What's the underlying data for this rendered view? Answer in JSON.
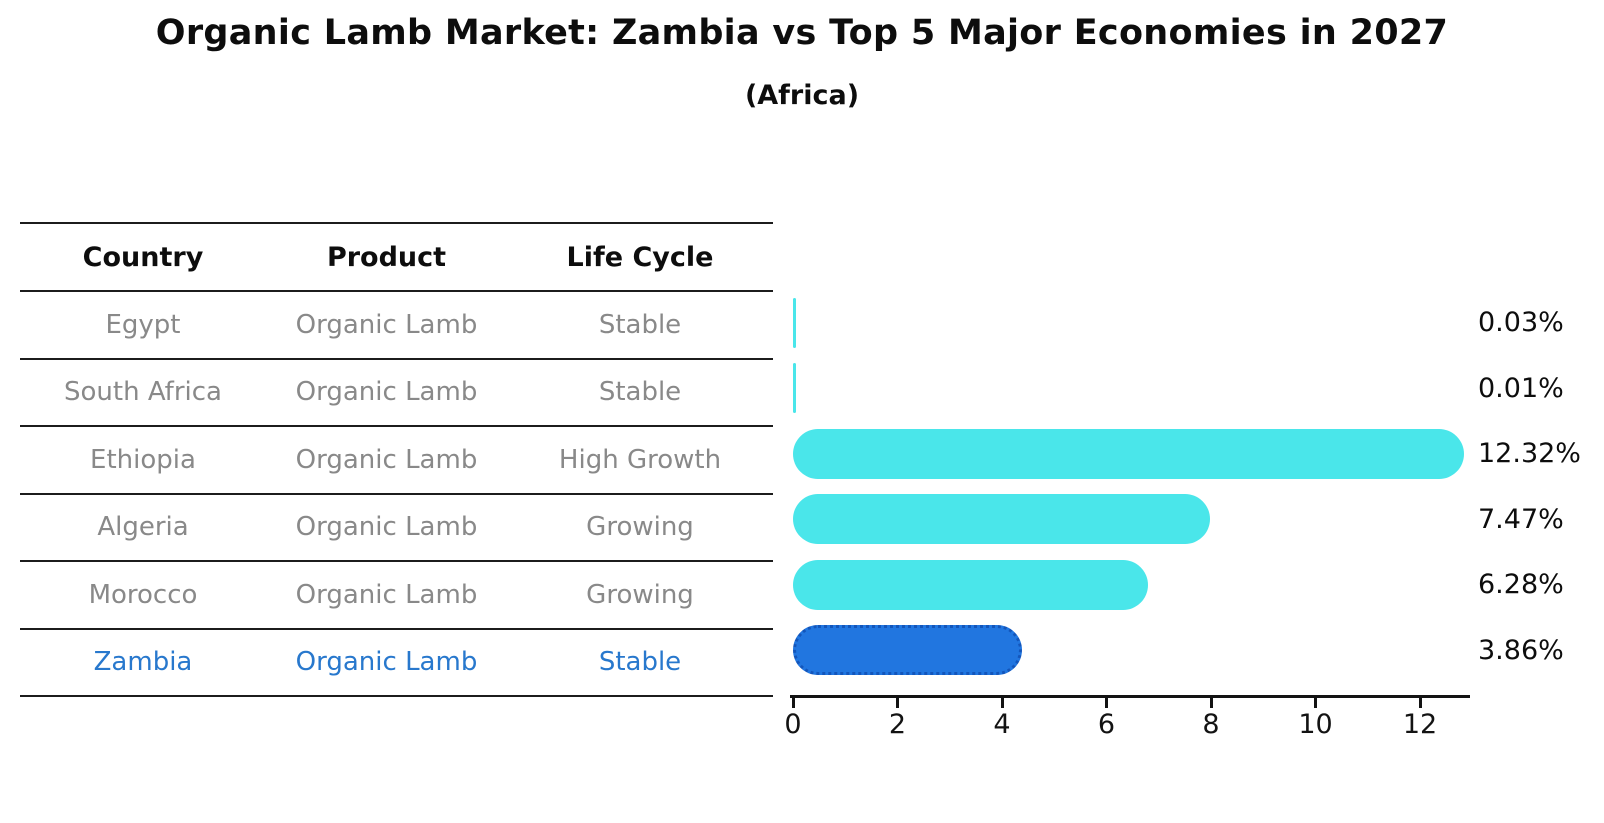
{
  "title": "Organic Lamb Market: Zambia vs Top 5 Major Economies in 2027",
  "subtitle": "(Africa)",
  "table": {
    "headers": [
      "Country",
      "Product",
      "Life Cycle"
    ],
    "rows": [
      {
        "country": "Egypt",
        "product": "Organic Lamb",
        "life_cycle": "Stable",
        "highlight": false
      },
      {
        "country": "South Africa",
        "product": "Organic Lamb",
        "life_cycle": "Stable",
        "highlight": false
      },
      {
        "country": "Ethiopia",
        "product": "Organic Lamb",
        "life_cycle": "High Growth",
        "highlight": false
      },
      {
        "country": "Algeria",
        "product": "Organic Lamb",
        "life_cycle": "Growing",
        "highlight": false
      },
      {
        "country": "Morocco",
        "product": "Organic Lamb",
        "life_cycle": "Growing",
        "highlight": false
      },
      {
        "country": "Zambia",
        "product": "Organic Lamb",
        "life_cycle": "Stable",
        "highlight": true
      }
    ]
  },
  "chart_data": {
    "type": "bar",
    "orientation": "horizontal",
    "title": "Organic Lamb Market: Zambia vs Top 5 Major Economies in 2027",
    "subtitle": "(Africa)",
    "categories": [
      "Egypt",
      "South Africa",
      "Ethiopia",
      "Algeria",
      "Morocco",
      "Zambia"
    ],
    "values": [
      0.03,
      0.01,
      12.32,
      7.47,
      6.28,
      3.86
    ],
    "value_labels": [
      "0.03%",
      "0.01%",
      "12.32%",
      "7.47%",
      "6.28%",
      "3.86%"
    ],
    "x_ticks": [
      0,
      2,
      4,
      6,
      8,
      10,
      12
    ],
    "xlim": [
      0,
      13
    ],
    "grid": false,
    "legend": false,
    "bar_color": "#4ae6ea",
    "highlight_bar_color": "#2176e0",
    "highlight_border_color": "#1356bb",
    "highlight_index": 5,
    "highlight_text_color": "#2878cd",
    "row_text_color": "#898989",
    "label_text_color": "#0d0d0d"
  }
}
